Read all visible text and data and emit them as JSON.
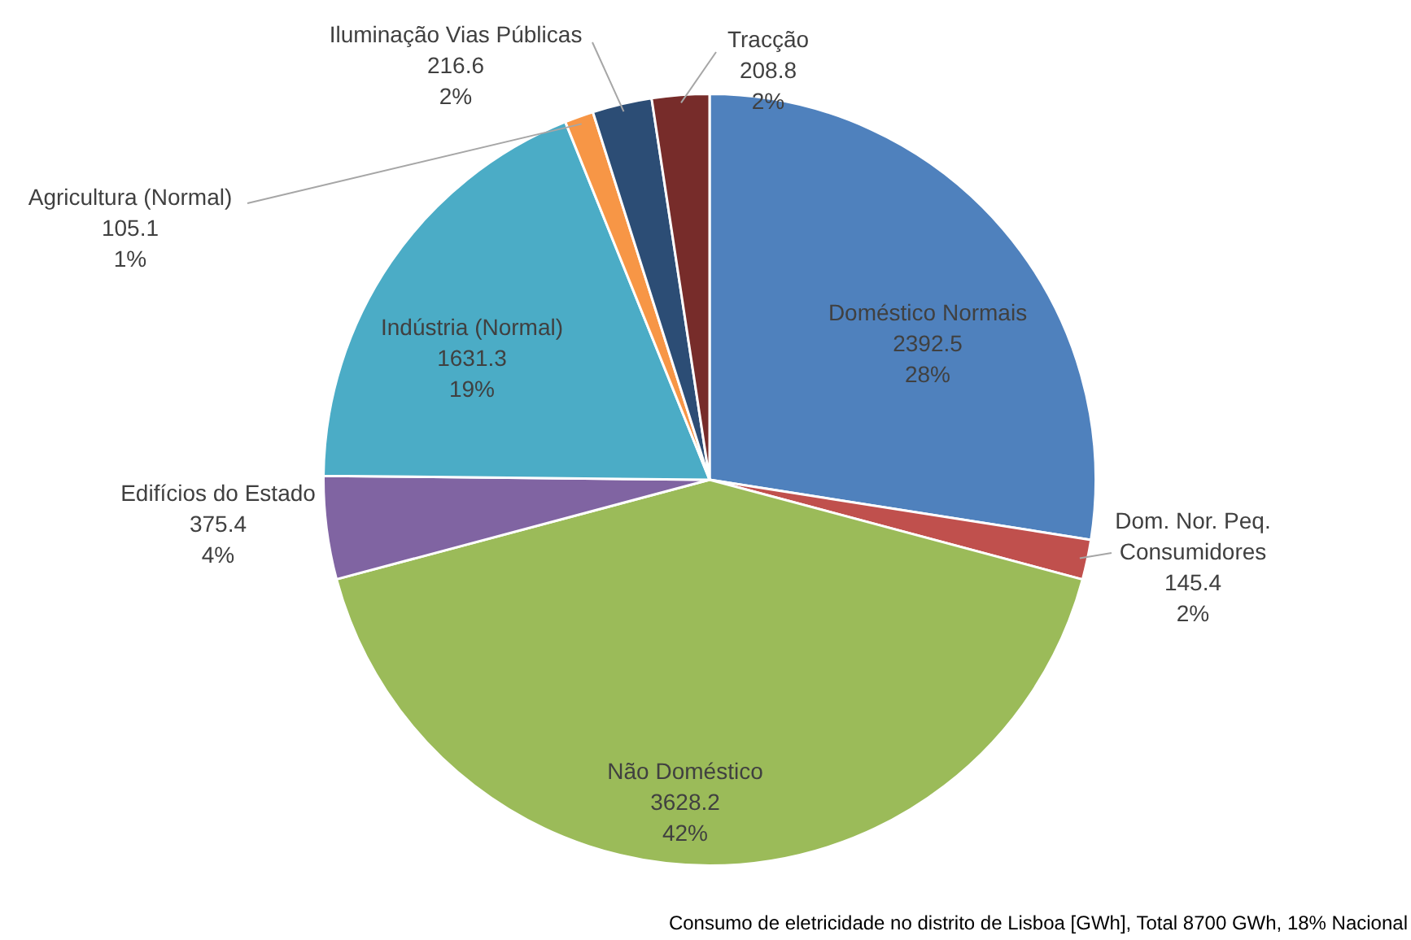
{
  "chart_data": {
    "type": "pie",
    "categories": [
      "Doméstico Normais",
      "Dom. Nor. Peq. Consumidores",
      "Não Doméstico",
      "Edifícios do Estado",
      "Indústria (Normal)",
      "Agricultura (Normal)",
      "Iluminação Vias Públicas",
      "Tracção"
    ],
    "values": [
      2392.5,
      145.4,
      3628.2,
      375.4,
      1631.3,
      105.1,
      216.6,
      208.8
    ],
    "colors": [
      "#4f81bd",
      "#c0504d",
      "#9bbb59",
      "#8064a2",
      "#4bacc6",
      "#f79646",
      "#2c4d75",
      "#772c2a"
    ],
    "value_labels": [
      "2392.5\n28%",
      "145.4\n2%",
      "3628.2\n42%",
      "375.4\n4%",
      "1631.3\n19%",
      "105.1\n1%",
      "216.6\n2%",
      "208.8\n2%"
    ],
    "legend": false,
    "annotations": [
      "Consumo de eletricidade no distrito de Lisboa [GWh], Total 8700 GWh, 18% Nacional"
    ]
  }
}
